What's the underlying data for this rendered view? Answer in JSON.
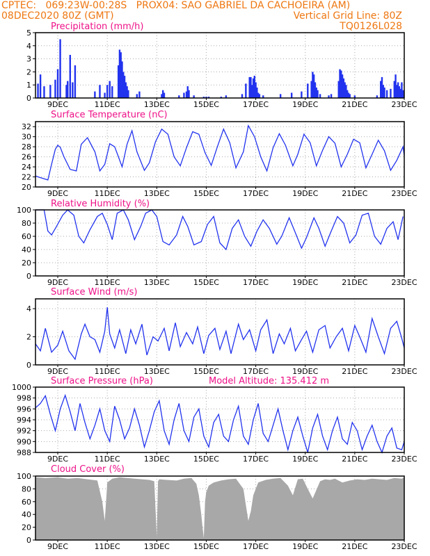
{
  "header": {
    "line1_left": "CPTEC:   069:23W-00:28S   PROX04: SAO GABRIEL DA CACHOEIRA (AM)",
    "line2_left": "08DEC2020 80Z (GMT)",
    "line2_right": "Vertical Grid Line: 80Z",
    "line3_right": "TQ0126L028"
  },
  "colors": {
    "header": "#ee7711",
    "panel_title": "#ee1188",
    "series": "#2233ee",
    "cloud": "#a8a8a8",
    "axis": "#000000",
    "grid": "#aaaaaa"
  },
  "x_ticks": [
    "9DEC",
    "11DEC",
    "13DEC",
    "15DEC",
    "17DEC",
    "19DEC",
    "21DEC",
    "23DEC"
  ],
  "chart_data": [
    {
      "type": "bar",
      "title": "Precipitation (mm/h)",
      "ylim": [
        0,
        5
      ],
      "yticks": [
        0,
        1,
        2,
        3,
        4,
        5
      ],
      "xlim": [
        8.1,
        23
      ],
      "x": [
        8.2,
        8.3,
        8.45,
        8.7,
        8.9,
        9.0,
        9.1,
        9.35,
        9.4,
        9.5,
        9.6,
        9.7,
        10.5,
        10.7,
        10.9,
        11.0,
        11.1,
        11.2,
        11.45,
        11.5,
        11.55,
        11.6,
        11.65,
        11.7,
        11.75,
        11.8,
        11.85,
        12.2,
        12.3,
        13.2,
        13.25,
        13.3,
        13.9,
        14.1,
        14.2,
        14.25,
        14.3,
        14.5,
        14.9,
        15.0,
        15.1,
        15.6,
        15.8,
        16.45,
        16.6,
        16.75,
        16.8,
        16.85,
        16.9,
        16.95,
        17.0,
        17.05,
        17.1,
        17.15,
        17.3,
        18.0,
        18.45,
        18.85,
        19.1,
        19.25,
        19.3,
        19.35,
        19.4,
        19.45,
        19.5,
        19.6,
        19.95,
        20.05,
        20.35,
        20.4,
        20.45,
        20.5,
        20.55,
        20.6,
        20.65,
        20.7,
        20.75,
        20.8,
        21.0,
        21.9,
        22.05,
        22.1,
        22.15,
        22.2,
        22.3,
        22.45,
        22.6,
        22.65,
        22.7,
        22.75,
        22.8,
        22.85,
        22.9,
        22.95
      ],
      "values": [
        1.1,
        1.8,
        0.9,
        1.0,
        1.4,
        2.2,
        4.5,
        1.0,
        1.3,
        3.3,
        1.2,
        2.5,
        0.5,
        1.0,
        0.4,
        1.0,
        1.3,
        0.9,
        2.5,
        3.7,
        3.5,
        2.8,
        2.0,
        1.7,
        1.2,
        0.9,
        0.6,
        0.3,
        0.5,
        0.3,
        0.6,
        0.4,
        0.2,
        0.4,
        0.5,
        0.9,
        0.6,
        0.2,
        0.1,
        0.1,
        0.1,
        0.1,
        0.2,
        0.3,
        1.1,
        1.6,
        1.6,
        1.0,
        1.5,
        1.7,
        1.2,
        0.8,
        0.4,
        0.3,
        0.2,
        0.3,
        0.4,
        0.5,
        1.1,
        1.3,
        2.0,
        1.8,
        1.2,
        0.8,
        0.6,
        0.3,
        0.2,
        0.3,
        1.3,
        2.2,
        2.1,
        1.8,
        1.5,
        1.2,
        1.0,
        0.6,
        0.4,
        0.3,
        0.2,
        0.2,
        1.3,
        1.6,
        1.0,
        0.8,
        0.6,
        0.7,
        1.3,
        1.8,
        1.0,
        1.2,
        0.9,
        0.7,
        1.2,
        0.6
      ]
    },
    {
      "type": "line",
      "title": "Surface Temperature (nC)",
      "ylim": [
        20,
        33
      ],
      "yticks": [
        20,
        22,
        24,
        26,
        28,
        30,
        32
      ],
      "xlim": [
        8.1,
        23
      ],
      "x": [
        8.1,
        8.2,
        8.6,
        8.75,
        8.9,
        9.0,
        9.1,
        9.25,
        9.5,
        9.75,
        9.95,
        10.2,
        10.5,
        10.7,
        10.9,
        11.1,
        11.3,
        11.45,
        11.6,
        11.8,
        12.0,
        12.2,
        12.5,
        12.7,
        12.95,
        13.2,
        13.45,
        13.7,
        13.95,
        14.2,
        14.45,
        14.7,
        14.95,
        15.2,
        15.45,
        15.7,
        15.95,
        16.2,
        16.5,
        16.7,
        16.95,
        17.2,
        17.45,
        17.7,
        17.95,
        18.2,
        18.5,
        18.7,
        18.95,
        19.2,
        19.45,
        19.7,
        19.95,
        20.2,
        20.45,
        20.7,
        20.95,
        21.2,
        21.45,
        21.7,
        21.95,
        22.2,
        22.45,
        22.7,
        22.95,
        23.0
      ],
      "values": [
        22.2,
        22.0,
        21.4,
        24.5,
        27.5,
        28.3,
        27.9,
        26.0,
        23.5,
        23.2,
        28.5,
        29.8,
        27.0,
        23.2,
        24.5,
        28.6,
        28.0,
        26.0,
        24.0,
        28.5,
        31.2,
        27.0,
        23.3,
        24.8,
        29.0,
        31.5,
        30.5,
        26.0,
        24.2,
        27.8,
        31.0,
        30.5,
        26.8,
        24.3,
        28.0,
        31.5,
        28.8,
        23.8,
        27.0,
        32.2,
        30.0,
        26.0,
        23.2,
        27.8,
        30.6,
        28.3,
        24.2,
        26.5,
        30.5,
        28.8,
        24.2,
        27.3,
        30.0,
        28.7,
        24.0,
        26.5,
        29.5,
        28.8,
        23.8,
        26.5,
        29.3,
        27.2,
        23.3,
        25.3,
        28.0,
        26.2
      ]
    },
    {
      "type": "line",
      "title": "Relative Humidity (%)",
      "ylim": [
        0,
        100
      ],
      "yticks": [
        0,
        20,
        40,
        60,
        80,
        100
      ],
      "xlim": [
        8.1,
        23
      ],
      "x": [
        8.1,
        8.45,
        8.6,
        8.75,
        8.95,
        9.2,
        9.4,
        9.65,
        9.85,
        10.05,
        10.3,
        10.6,
        10.8,
        11.0,
        11.2,
        11.4,
        11.65,
        11.85,
        12.1,
        12.35,
        12.55,
        12.8,
        13.0,
        13.25,
        13.5,
        13.8,
        14.05,
        14.25,
        14.5,
        14.8,
        15.05,
        15.3,
        15.55,
        15.8,
        16.05,
        16.3,
        16.55,
        16.8,
        17.05,
        17.3,
        17.55,
        17.85,
        18.05,
        18.35,
        18.55,
        18.85,
        19.05,
        19.35,
        19.55,
        19.8,
        20.05,
        20.3,
        20.55,
        20.8,
        21.05,
        21.3,
        21.55,
        21.8,
        22.05,
        22.3,
        22.55,
        22.75,
        22.95
      ],
      "values": [
        100,
        100,
        68,
        62,
        75,
        92,
        100,
        92,
        60,
        50,
        70,
        90,
        95,
        78,
        55,
        95,
        100,
        85,
        55,
        75,
        95,
        100,
        90,
        52,
        47,
        62,
        90,
        75,
        47,
        52,
        78,
        90,
        50,
        40,
        72,
        85,
        60,
        45,
        68,
        85,
        72,
        48,
        60,
        88,
        70,
        42,
        58,
        88,
        72,
        45,
        68,
        90,
        80,
        50,
        62,
        92,
        95,
        60,
        48,
        72,
        82,
        55,
        90
      ]
    },
    {
      "type": "line",
      "title": "Surface Wind (m/s)",
      "ylim": [
        0,
        4.7
      ],
      "yticks": [
        0,
        2,
        4
      ],
      "xlim": [
        8.1,
        23
      ],
      "x": [
        8.1,
        8.3,
        8.5,
        8.75,
        9.0,
        9.2,
        9.45,
        9.7,
        9.95,
        10.1,
        10.3,
        10.5,
        10.7,
        10.9,
        11.0,
        11.1,
        11.3,
        11.5,
        11.75,
        11.95,
        12.15,
        12.4,
        12.6,
        12.85,
        13.05,
        13.3,
        13.5,
        13.75,
        13.95,
        14.2,
        14.45,
        14.65,
        14.9,
        15.1,
        15.35,
        15.55,
        15.8,
        16.0,
        16.3,
        16.5,
        16.75,
        17.0,
        17.2,
        17.45,
        17.7,
        17.95,
        18.15,
        18.4,
        18.6,
        18.85,
        19.05,
        19.3,
        19.55,
        19.8,
        20.0,
        20.25,
        20.5,
        20.75,
        21.0,
        21.2,
        21.45,
        21.7,
        21.95,
        22.2,
        22.45,
        22.7,
        22.9,
        23.0
      ],
      "values": [
        1.5,
        1.0,
        2.6,
        0.9,
        1.4,
        2.4,
        1.0,
        0.4,
        2.2,
        2.9,
        2.0,
        1.8,
        0.9,
        2.4,
        4.1,
        2.2,
        1.2,
        2.5,
        0.8,
        2.5,
        1.5,
        2.9,
        0.7,
        2.0,
        1.7,
        2.6,
        1.0,
        3.0,
        1.3,
        2.3,
        1.5,
        2.7,
        0.8,
        2.1,
        2.6,
        1.1,
        2.4,
        0.8,
        2.9,
        1.8,
        2.5,
        1.0,
        2.5,
        3.2,
        0.8,
        2.2,
        1.5,
        2.6,
        1.0,
        1.8,
        2.4,
        0.9,
        2.5,
        2.8,
        1.2,
        2.0,
        2.6,
        1.0,
        2.8,
        2.0,
        0.9,
        3.3,
        2.0,
        0.8,
        2.6,
        3.1,
        1.9,
        1.2
      ]
    },
    {
      "type": "line",
      "title": "Surface Pressure (hPa)",
      "annotation": "Model Altitude: 135.412 m",
      "ylim": [
        988,
        1000
      ],
      "yticks": [
        988,
        990,
        992,
        994,
        996,
        998,
        1000
      ],
      "xlim": [
        8.1,
        23
      ],
      "x": [
        8.1,
        8.3,
        8.5,
        8.7,
        8.9,
        9.1,
        9.3,
        9.5,
        9.7,
        9.9,
        10.1,
        10.3,
        10.5,
        10.7,
        10.9,
        11.1,
        11.3,
        11.5,
        11.7,
        11.9,
        12.1,
        12.3,
        12.5,
        12.7,
        12.9,
        13.1,
        13.3,
        13.5,
        13.7,
        13.9,
        14.1,
        14.3,
        14.5,
        14.7,
        14.9,
        15.1,
        15.3,
        15.5,
        15.7,
        15.9,
        16.1,
        16.3,
        16.5,
        16.7,
        16.9,
        17.1,
        17.3,
        17.5,
        17.7,
        17.9,
        18.1,
        18.3,
        18.5,
        18.7,
        18.9,
        19.1,
        19.3,
        19.5,
        19.7,
        19.9,
        20.1,
        20.3,
        20.5,
        20.7,
        20.9,
        21.1,
        21.3,
        21.5,
        21.7,
        21.9,
        22.1,
        22.3,
        22.5,
        22.7,
        22.9,
        23.0
      ],
      "values": [
        996.2,
        997.0,
        998.4,
        995.0,
        992.0,
        996.0,
        998.5,
        995.5,
        992.0,
        997.0,
        993.5,
        990.5,
        993.0,
        996.0,
        992.0,
        990.0,
        996.5,
        994.0,
        990.5,
        992.5,
        996.0,
        993.0,
        989.0,
        992.0,
        995.5,
        997.5,
        992.0,
        989.5,
        994.0,
        997.0,
        992.0,
        990.0,
        994.5,
        996.0,
        991.0,
        989.0,
        993.5,
        995.0,
        991.0,
        990.0,
        994.0,
        996.5,
        991.0,
        989.5,
        994.0,
        997.0,
        991.5,
        990.0,
        993.0,
        996.0,
        992.0,
        988.5,
        992.0,
        994.5,
        991.0,
        988.0,
        992.5,
        995.0,
        991.0,
        988.5,
        992.0,
        994.5,
        990.5,
        989.5,
        993.5,
        992.0,
        988.5,
        991.0,
        993.0,
        990.0,
        988.0,
        991.0,
        992.5,
        988.8,
        988.5,
        990.0
      ]
    },
    {
      "type": "area",
      "title": "Cloud Cover (%)",
      "ylim": [
        0,
        100
      ],
      "yticks": [
        0,
        20,
        40,
        60,
        80,
        100
      ],
      "xlim": [
        8.1,
        23
      ],
      "x": [
        8.1,
        8.5,
        9.0,
        9.4,
        9.8,
        10.2,
        10.6,
        10.8,
        10.9,
        11.0,
        11.2,
        11.5,
        11.8,
        12.1,
        12.4,
        12.7,
        12.9,
        13.0,
        13.05,
        13.1,
        13.4,
        13.8,
        14.1,
        14.4,
        14.6,
        14.7,
        14.8,
        14.85,
        14.9,
        14.95,
        15.0,
        15.1,
        15.3,
        15.6,
        15.9,
        16.2,
        16.5,
        16.6,
        16.7,
        16.8,
        16.9,
        17.1,
        17.4,
        17.7,
        18.0,
        18.3,
        18.5,
        18.7,
        18.9,
        19.1,
        19.3,
        19.6,
        19.8,
        20.0,
        20.2,
        20.5,
        20.8,
        21.1,
        21.4,
        21.7,
        22.0,
        22.3,
        22.6,
        22.9,
        23.0
      ],
      "values": [
        98,
        97,
        98,
        96,
        97,
        95,
        93,
        60,
        30,
        90,
        96,
        98,
        97,
        96,
        95,
        94,
        92,
        5,
        92,
        95,
        94,
        93,
        96,
        97,
        88,
        70,
        40,
        20,
        3,
        60,
        75,
        85,
        90,
        93,
        95,
        96,
        80,
        55,
        30,
        45,
        70,
        90,
        94,
        96,
        97,
        85,
        70,
        95,
        96,
        80,
        65,
        92,
        95,
        94,
        96,
        90,
        93,
        95,
        94,
        96,
        95,
        94,
        97,
        96,
        98
      ]
    }
  ]
}
